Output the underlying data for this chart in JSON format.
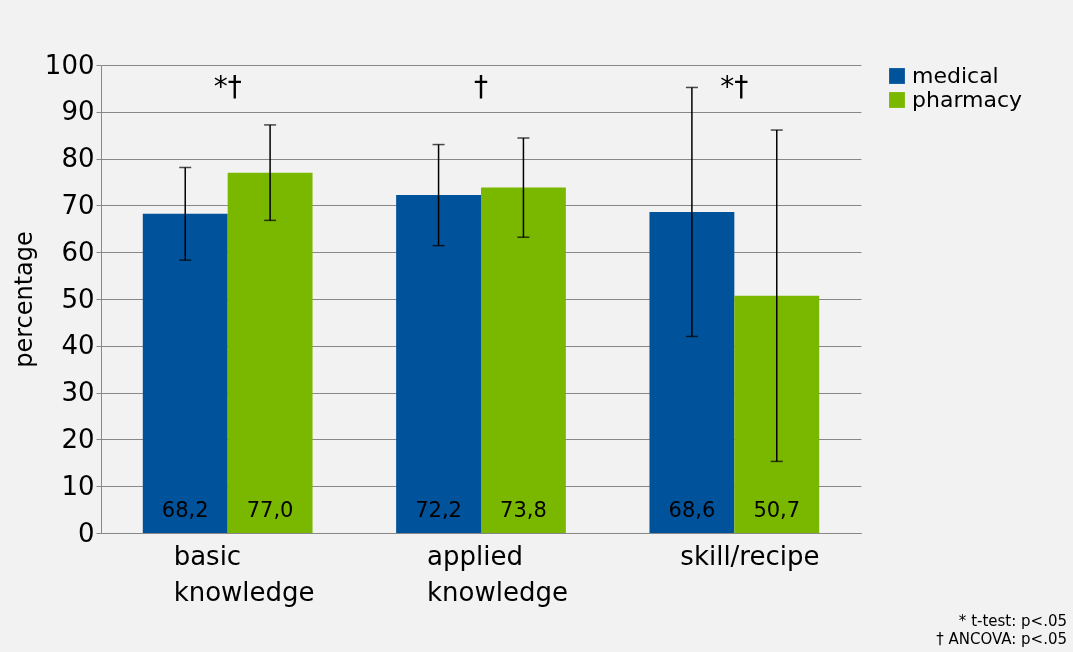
{
  "chart_data": {
    "type": "bar",
    "ylabel": "percentage",
    "categories": [
      "basic knowledge",
      "applied knowledge",
      "skill/recipe"
    ],
    "series": [
      {
        "name": "medical",
        "color": "#00529b",
        "values": [
          68.2,
          72.2,
          68.6
        ],
        "errors": [
          9.9,
          10.8,
          26.6
        ],
        "value_labels": [
          "68,2",
          "72,2",
          "68,6"
        ]
      },
      {
        "name": "pharmacy",
        "color": "#7ab800",
        "values": [
          77.0,
          73.8,
          50.7
        ],
        "errors": [
          10.2,
          10.6,
          35.4
        ],
        "value_labels": [
          "77,0",
          "73,8",
          "50,7"
        ]
      }
    ],
    "ylim": [
      0,
      100
    ],
    "yticks": [
      0,
      10,
      20,
      30,
      40,
      50,
      60,
      70,
      80,
      90,
      100
    ],
    "grid": "y",
    "legend": "top right",
    "annotations": [
      "*†",
      "†",
      "*†",
      "* t-test: p<.05",
      "† ANCOVA: p<.05"
    ]
  }
}
